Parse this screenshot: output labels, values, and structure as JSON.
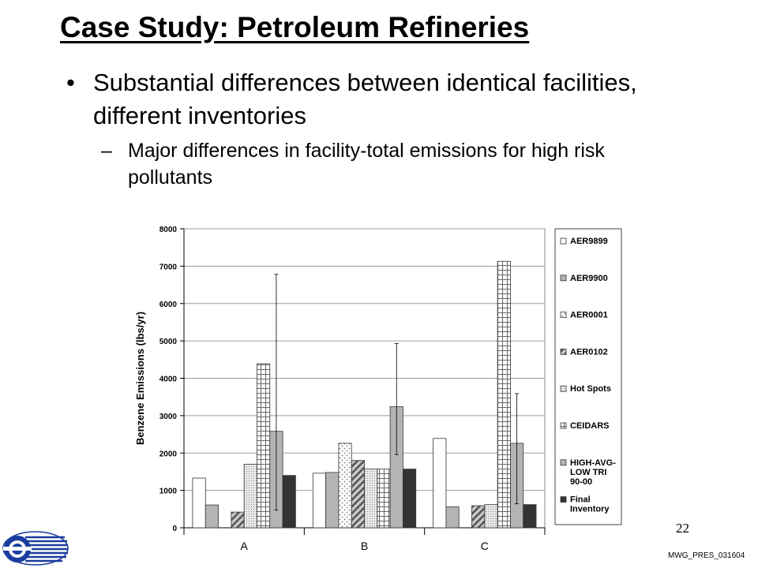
{
  "slide": {
    "title": "Case Study:  Petroleum Refineries",
    "bullet_1": "Substantial differences between identical facilities, different inventories",
    "bullet_1_sub_1": "Major differences in facility-total emissions for high risk pollutants",
    "page_number": "22",
    "footer_code": "MWG_PRES_031604",
    "logo_icon": "agency-logo-icon"
  },
  "chart_data": {
    "type": "bar",
    "title": "",
    "xlabel": "",
    "ylabel": "Benzene Emissions (lbs/yr)",
    "ylim": [
      0,
      8000
    ],
    "yticks": [
      0,
      1000,
      2000,
      3000,
      4000,
      5000,
      6000,
      7000,
      8000
    ],
    "grid": "horizontal",
    "legend_position": "right",
    "categories": [
      "A",
      "B",
      "C"
    ],
    "series": [
      {
        "name": "AER9899",
        "values": [
          1330,
          1460,
          2390
        ],
        "pattern": "white"
      },
      {
        "name": "AER9900",
        "values": [
          610,
          1480,
          560
        ],
        "pattern": "gray"
      },
      {
        "name": "AER0001",
        "values": [
          0,
          2260,
          0
        ],
        "pattern": "dotted"
      },
      {
        "name": "AER0102",
        "values": [
          420,
          1800,
          590
        ],
        "pattern": "diagonal"
      },
      {
        "name": "Hot Spots",
        "values": [
          1700,
          1570,
          620
        ],
        "pattern": "fine-dots"
      },
      {
        "name": "CEIDARS",
        "values": [
          4390,
          1570,
          7130
        ],
        "pattern": "grid"
      },
      {
        "name": "HIGH-AVG-LOW TRI 90-00",
        "values": [
          2580,
          3240,
          2260
        ],
        "pattern": "gray",
        "error_high": [
          6780,
          4930,
          3590
        ],
        "error_low": [
          470,
          1960,
          640
        ]
      },
      {
        "name": "Final Inventory",
        "values": [
          1400,
          1570,
          620
        ],
        "pattern": "dark"
      }
    ]
  }
}
